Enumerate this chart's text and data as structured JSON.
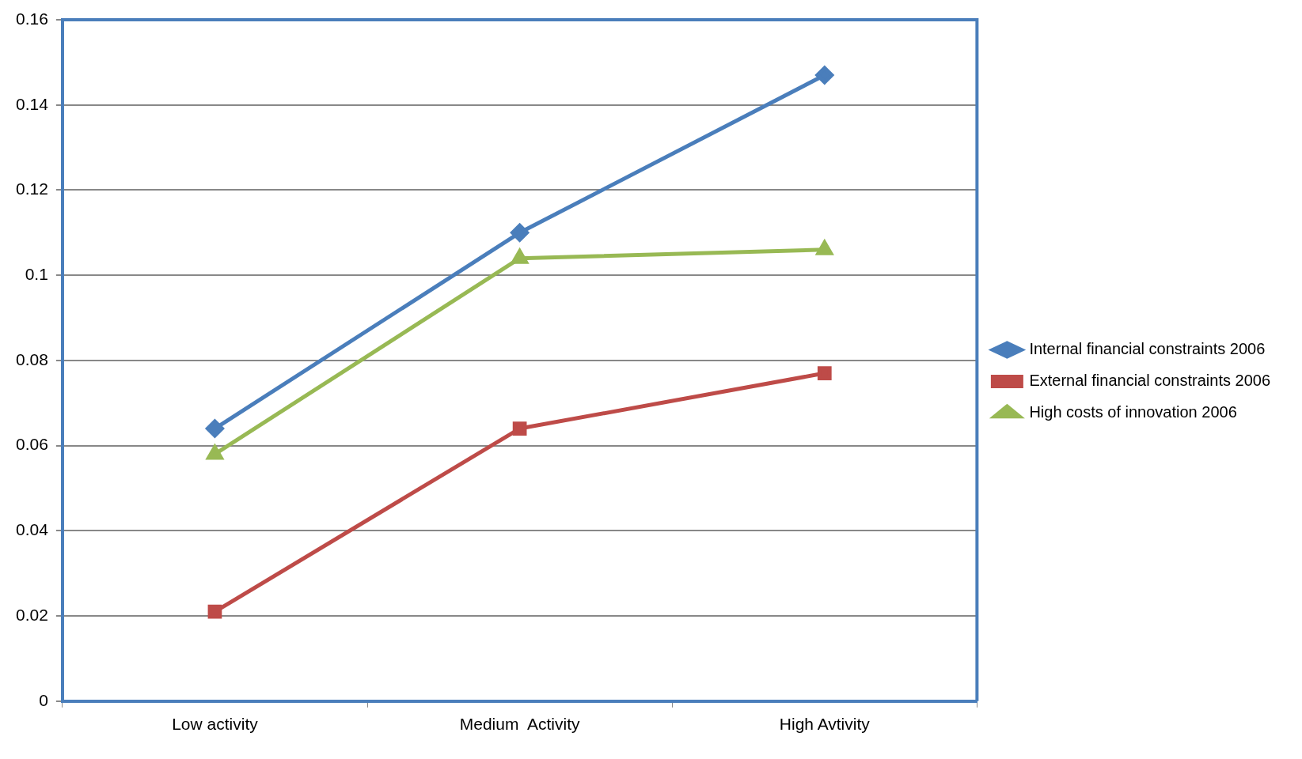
{
  "chart_data": {
    "type": "line",
    "categories": [
      "Low activity",
      "Medium  Activity",
      "High Avtivity"
    ],
    "series": [
      {
        "name": "Internal financial constraints 2006",
        "color": "#4a7ebb",
        "marker": "diamond",
        "values": [
          0.064,
          0.11,
          0.147
        ]
      },
      {
        "name": "External financial constraints 2006",
        "color": "#be4b48",
        "marker": "square",
        "values": [
          0.021,
          0.064,
          0.077
        ]
      },
      {
        "name": "High costs of innovation 2006",
        "color": "#98b954",
        "marker": "triangle",
        "values": [
          0.058,
          0.104,
          0.106
        ]
      }
    ],
    "ylim": [
      0,
      0.16
    ],
    "yticks": [
      0,
      0.02,
      0.04,
      0.06,
      0.08,
      0.1,
      0.12,
      0.14,
      0.16
    ],
    "grid": "y",
    "legend": "right",
    "line_style": "solid"
  }
}
